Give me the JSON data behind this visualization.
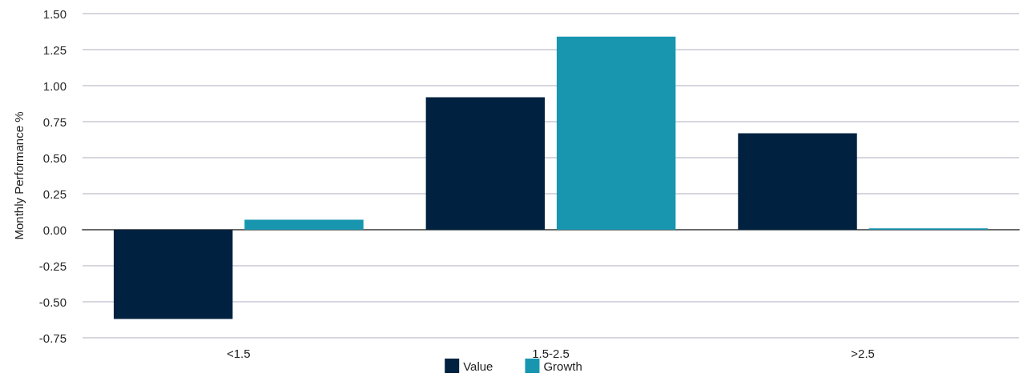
{
  "chart_data": {
    "type": "bar",
    "ylabel": "Monthly Performance %",
    "categories": [
      "<1.5",
      "1.5-2.5",
      ">2.5"
    ],
    "series": [
      {
        "name": "Value",
        "color": "#002240",
        "values": [
          -0.62,
          0.92,
          0.67
        ]
      },
      {
        "name": "Growth",
        "color": "#1896b0",
        "values": [
          0.07,
          1.34,
          0.01
        ]
      }
    ],
    "ylim": [
      -0.75,
      1.5
    ],
    "yticks": [
      {
        "value": -0.75,
        "label": "-0.75"
      },
      {
        "value": -0.5,
        "label": "-0.50"
      },
      {
        "value": -0.25,
        "label": "-0.25"
      },
      {
        "value": 0,
        "label": "0.00"
      },
      {
        "value": 0.25,
        "label": "0.25"
      },
      {
        "value": 0.5,
        "label": "0.50"
      },
      {
        "value": 0.75,
        "label": "0.75"
      },
      {
        "value": 1,
        "label": "1.00"
      },
      {
        "value": 1.25,
        "label": "1.25"
      },
      {
        "value": 1.5,
        "label": "1.50"
      }
    ],
    "grid": "y",
    "legend": "bottom"
  }
}
